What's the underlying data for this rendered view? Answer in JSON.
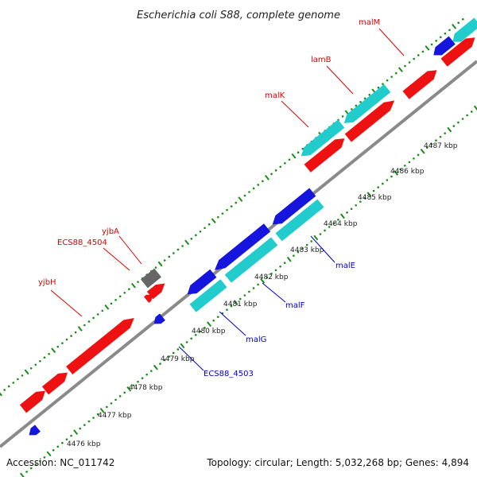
{
  "title": "Escherichia coli S88, complete genome",
  "footer": {
    "accession": "Accession: NC_011742",
    "summary": "Topology: circular; Length: 5,032,268 bp; Genes: 4,894"
  },
  "colors": {
    "background": "#ffffff",
    "backbone": "#808080",
    "dots": "#1a8c1a",
    "ticks": "#1a8c1a",
    "gene_red": "#ee1111",
    "gene_blue": "#1515dd",
    "gene_cyan": "#22cccc",
    "gene_gray": "#666666",
    "label_red": "#dd0000",
    "label_blue": "#0000cc"
  },
  "ticks": [
    "4476 kbp",
    "4477 kbp",
    "4478 kbp",
    "4479 kbp",
    "4480 kbp",
    "4481 kbp",
    "4482 kbp",
    "4483 kbp",
    "4484 kbp",
    "4485 kbp",
    "4486 kbp",
    "4487 kbp"
  ],
  "gene_labels_top": [
    {
      "name": "yjbH",
      "color": "red"
    },
    {
      "name": "ECS88_4504",
      "color": "red"
    },
    {
      "name": "yjbA",
      "color": "red"
    },
    {
      "name": "malK",
      "color": "red"
    },
    {
      "name": "lamB",
      "color": "red"
    },
    {
      "name": "malM",
      "color": "red"
    }
  ],
  "gene_labels_bottom": [
    {
      "name": "ECS88_4503",
      "color": "blue"
    },
    {
      "name": "malG",
      "color": "blue"
    },
    {
      "name": "malF",
      "color": "blue"
    },
    {
      "name": "malE",
      "color": "blue"
    }
  ]
}
